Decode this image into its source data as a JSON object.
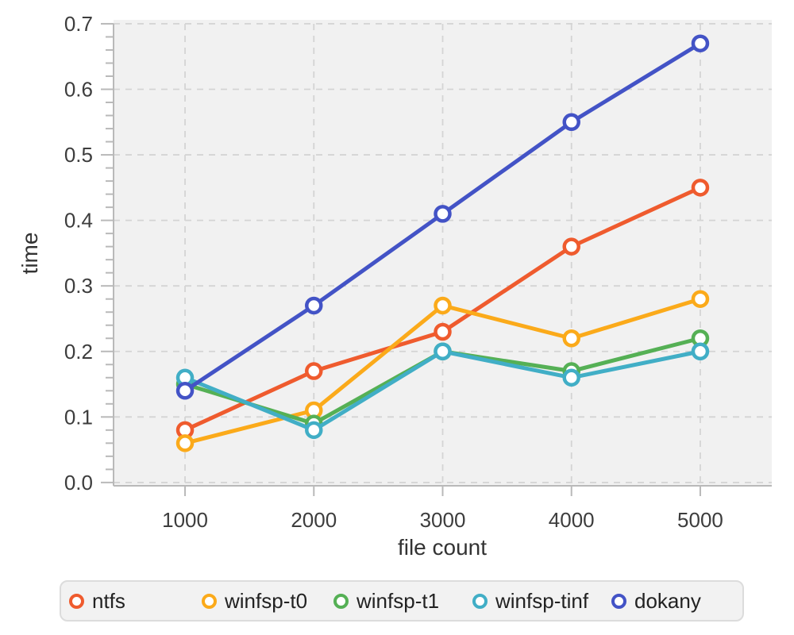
{
  "chart_data": {
    "type": "line",
    "x": [
      1000,
      2000,
      3000,
      4000,
      5000
    ],
    "series": [
      {
        "name": "ntfs",
        "color": "#ef5b2e",
        "values": [
          0.08,
          0.17,
          0.23,
          0.36,
          0.45
        ]
      },
      {
        "name": "winfsp-t0",
        "color": "#fbaa1a",
        "values": [
          0.06,
          0.11,
          0.27,
          0.22,
          0.28
        ]
      },
      {
        "name": "winfsp-t1",
        "color": "#55b055",
        "values": [
          0.15,
          0.09,
          0.2,
          0.17,
          0.22
        ]
      },
      {
        "name": "winfsp-tinf",
        "color": "#41aec6",
        "values": [
          0.16,
          0.08,
          0.2,
          0.16,
          0.2
        ]
      },
      {
        "name": "dokany",
        "color": "#4353c6",
        "values": [
          0.14,
          0.27,
          0.41,
          0.55,
          0.67
        ]
      }
    ],
    "xlabel": "file count",
    "ylabel": "time",
    "x_ticks": [
      1000,
      2000,
      3000,
      4000,
      5000
    ],
    "y_ticks": [
      0.0,
      0.1,
      0.2,
      0.3,
      0.4,
      0.5,
      0.6,
      0.7
    ],
    "y_minor_step": 0.02,
    "xlim": [
      445,
      5555
    ],
    "ylim": [
      -0.005,
      0.706
    ],
    "grid": "dashed",
    "legend_position": "bottom",
    "style": {
      "plot_bg": "#f1f1f1",
      "grid_color": "#d4d4d4",
      "axis_color": "#b9b9b9",
      "tick_label_color": "#3d3d3d",
      "line_width": 5,
      "marker_radius": 9,
      "marker_stroke": 4.5
    }
  }
}
